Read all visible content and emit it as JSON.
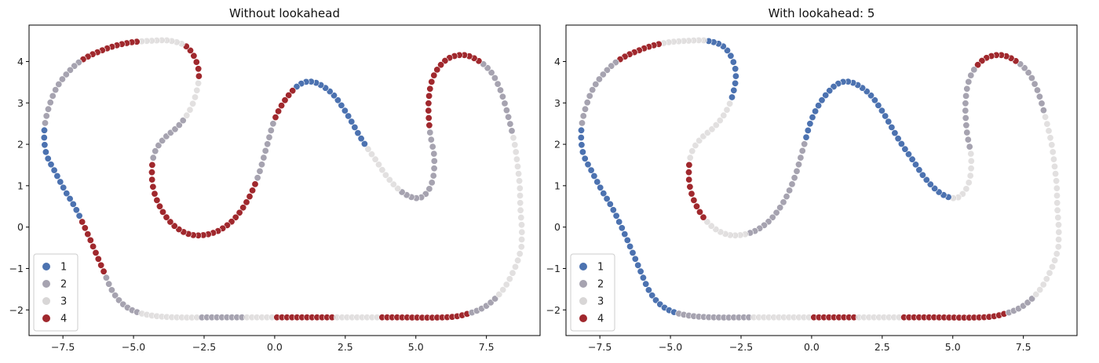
{
  "chart_data": [
    {
      "type": "scatter",
      "title": "Without lookahead",
      "xlabel": "",
      "ylabel": "",
      "xlim": [
        -8.7,
        9.4
      ],
      "ylim": [
        -2.62,
        4.88
      ],
      "xticks": [
        -7.5,
        -5.0,
        -2.5,
        0.0,
        2.5,
        5.0,
        7.5
      ],
      "xtick_labels": [
        "−7.5",
        "−5.0",
        "−2.5",
        "0.0",
        "2.5",
        "5.0",
        "7.5"
      ],
      "yticks": [
        -2,
        -1,
        0,
        1,
        2,
        3,
        4
      ],
      "ytick_labels": [
        "−2",
        "−1",
        "0",
        "1",
        "2",
        "3",
        "4"
      ],
      "grid": false,
      "legend": {
        "placement": "lower-left",
        "entries": [
          {
            "label": "1",
            "color": "#4c72b0"
          },
          {
            "label": "2",
            "color": "#a6a3b0"
          },
          {
            "label": "3",
            "color": "#d8d6d6"
          },
          {
            "label": "4",
            "color": "#a0282d"
          }
        ]
      },
      "track": [
        [
          8.75,
          -0.3
        ],
        [
          8.75,
          0.0
        ],
        [
          8.7,
          0.5
        ],
        [
          8.68,
          1.0
        ],
        [
          8.6,
          1.5
        ],
        [
          8.5,
          2.0
        ],
        [
          8.3,
          2.6
        ],
        [
          8.0,
          3.3
        ],
        [
          7.6,
          3.8
        ],
        [
          7.0,
          4.1
        ],
        [
          6.5,
          4.15
        ],
        [
          6.0,
          4.0
        ],
        [
          5.6,
          3.6
        ],
        [
          5.45,
          3.0
        ],
        [
          5.5,
          2.3
        ],
        [
          5.65,
          1.7
        ],
        [
          5.6,
          1.15
        ],
        [
          5.35,
          0.8
        ],
        [
          5.0,
          0.7
        ],
        [
          4.5,
          0.85
        ],
        [
          4.0,
          1.2
        ],
        [
          3.6,
          1.6
        ],
        [
          3.1,
          2.1
        ],
        [
          2.5,
          2.8
        ],
        [
          2.0,
          3.25
        ],
        [
          1.4,
          3.5
        ],
        [
          0.9,
          3.45
        ],
        [
          0.4,
          3.1
        ],
        [
          0.0,
          2.6
        ],
        [
          -0.3,
          1.9
        ],
        [
          -0.6,
          1.2
        ],
        [
          -1.0,
          0.6
        ],
        [
          -1.5,
          0.15
        ],
        [
          -2.1,
          -0.12
        ],
        [
          -2.8,
          -0.2
        ],
        [
          -3.4,
          -0.05
        ],
        [
          -3.9,
          0.3
        ],
        [
          -4.25,
          0.8
        ],
        [
          -4.35,
          1.3
        ],
        [
          -4.25,
          1.8
        ],
        [
          -3.9,
          2.15
        ],
        [
          -3.4,
          2.45
        ],
        [
          -2.95,
          2.9
        ],
        [
          -2.7,
          3.5
        ],
        [
          -2.75,
          3.95
        ],
        [
          -3.1,
          4.35
        ],
        [
          -3.7,
          4.5
        ],
        [
          -4.4,
          4.5
        ],
        [
          -5.2,
          4.45
        ],
        [
          -6.0,
          4.3
        ],
        [
          -6.9,
          4.0
        ],
        [
          -7.6,
          3.5
        ],
        [
          -7.95,
          3.0
        ],
        [
          -8.15,
          2.4
        ],
        [
          -8.1,
          1.8
        ],
        [
          -7.75,
          1.3
        ],
        [
          -7.4,
          0.85
        ],
        [
          -7.05,
          0.45
        ],
        [
          -6.6,
          -0.2
        ],
        [
          -6.1,
          -1.0
        ],
        [
          -5.7,
          -1.6
        ],
        [
          -5.2,
          -1.95
        ],
        [
          -4.5,
          -2.12
        ],
        [
          -3.5,
          -2.18
        ],
        [
          -2.0,
          -2.18
        ],
        [
          0.0,
          -2.18
        ],
        [
          2.0,
          -2.18
        ],
        [
          4.0,
          -2.18
        ],
        [
          6.0,
          -2.18
        ],
        [
          6.8,
          -2.1
        ],
        [
          7.5,
          -1.9
        ],
        [
          8.1,
          -1.5
        ],
        [
          8.5,
          -1.0
        ],
        [
          8.72,
          -0.55
        ]
      ],
      "point_count": 300,
      "segments": [
        {
          "from": 0.0,
          "to": 0.05,
          "label": "3"
        },
        {
          "from": 0.05,
          "to": 0.09,
          "label": "2"
        },
        {
          "from": 0.09,
          "to": 0.15,
          "label": "4"
        },
        {
          "from": 0.15,
          "to": 0.2,
          "label": "2"
        },
        {
          "from": 0.2,
          "to": 0.23,
          "label": "3"
        },
        {
          "from": 0.23,
          "to": 0.29,
          "label": "1"
        },
        {
          "from": 0.29,
          "to": 0.31,
          "label": "4"
        },
        {
          "from": 0.31,
          "to": 0.34,
          "label": "2"
        },
        {
          "from": 0.34,
          "to": 0.44,
          "label": "4"
        },
        {
          "from": 0.44,
          "to": 0.47,
          "label": "2"
        },
        {
          "from": 0.47,
          "to": 0.49,
          "label": "3"
        },
        {
          "from": 0.49,
          "to": 0.51,
          "label": "4"
        },
        {
          "from": 0.51,
          "to": 0.54,
          "label": "3"
        },
        {
          "from": 0.54,
          "to": 0.58,
          "label": "4"
        },
        {
          "from": 0.58,
          "to": 0.62,
          "label": "2"
        },
        {
          "from": 0.62,
          "to": 0.67,
          "label": "1"
        },
        {
          "from": 0.67,
          "to": 0.7,
          "label": "4"
        },
        {
          "from": 0.7,
          "to": 0.73,
          "label": "2"
        },
        {
          "from": 0.73,
          "to": 0.77,
          "label": "3"
        },
        {
          "from": 0.77,
          "to": 0.8,
          "label": "2"
        },
        {
          "from": 0.8,
          "to": 0.82,
          "label": "3"
        },
        {
          "from": 0.82,
          "to": 0.86,
          "label": "4"
        },
        {
          "from": 0.86,
          "to": 0.89,
          "label": "3"
        },
        {
          "from": 0.89,
          "to": 0.95,
          "label": "4"
        },
        {
          "from": 0.95,
          "to": 0.97,
          "label": "2"
        },
        {
          "from": 0.97,
          "to": 1.0,
          "label": "3"
        }
      ]
    },
    {
      "type": "scatter",
      "title": "With lookahead: 5",
      "xlabel": "",
      "ylabel": "",
      "xlim": [
        -8.7,
        9.4
      ],
      "ylim": [
        -2.62,
        4.88
      ],
      "xticks": [
        -7.5,
        -5.0,
        -2.5,
        0.0,
        2.5,
        5.0,
        7.5
      ],
      "xtick_labels": [
        "−7.5",
        "−5.0",
        "−2.5",
        "0.0",
        "2.5",
        "5.0",
        "7.5"
      ],
      "yticks": [
        -2,
        -1,
        0,
        1,
        2,
        3,
        4
      ],
      "ytick_labels": [
        "−2",
        "−1",
        "0",
        "1",
        "2",
        "3",
        "4"
      ],
      "grid": false,
      "legend": {
        "placement": "lower-left",
        "entries": [
          {
            "label": "1",
            "color": "#4c72b0"
          },
          {
            "label": "2",
            "color": "#a6a3b0"
          },
          {
            "label": "3",
            "color": "#d8d6d6"
          },
          {
            "label": "4",
            "color": "#a0282d"
          }
        ]
      },
      "track": "same",
      "point_count": 300,
      "segments": [
        {
          "from": 0.0,
          "to": 0.06,
          "label": "3"
        },
        {
          "from": 0.06,
          "to": 0.09,
          "label": "2"
        },
        {
          "from": 0.09,
          "to": 0.12,
          "label": "4"
        },
        {
          "from": 0.12,
          "to": 0.16,
          "label": "2"
        },
        {
          "from": 0.16,
          "to": 0.19,
          "label": "3"
        },
        {
          "from": 0.19,
          "to": 0.32,
          "label": "1"
        },
        {
          "from": 0.32,
          "to": 0.38,
          "label": "2"
        },
        {
          "from": 0.38,
          "to": 0.41,
          "label": "3"
        },
        {
          "from": 0.41,
          "to": 0.44,
          "label": "4"
        },
        {
          "from": 0.44,
          "to": 0.48,
          "label": "3"
        },
        {
          "from": 0.48,
          "to": 0.52,
          "label": "1"
        },
        {
          "from": 0.52,
          "to": 0.55,
          "label": "3"
        },
        {
          "from": 0.55,
          "to": 0.58,
          "label": "4"
        },
        {
          "from": 0.58,
          "to": 0.62,
          "label": "2"
        },
        {
          "from": 0.62,
          "to": 0.73,
          "label": "1"
        },
        {
          "from": 0.73,
          "to": 0.78,
          "label": "2"
        },
        {
          "from": 0.78,
          "to": 0.82,
          "label": "3"
        },
        {
          "from": 0.82,
          "to": 0.85,
          "label": "4"
        },
        {
          "from": 0.85,
          "to": 0.88,
          "label": "3"
        },
        {
          "from": 0.88,
          "to": 0.95,
          "label": "4"
        },
        {
          "from": 0.95,
          "to": 0.97,
          "label": "2"
        },
        {
          "from": 0.97,
          "to": 1.0,
          "label": "3"
        }
      ]
    }
  ]
}
